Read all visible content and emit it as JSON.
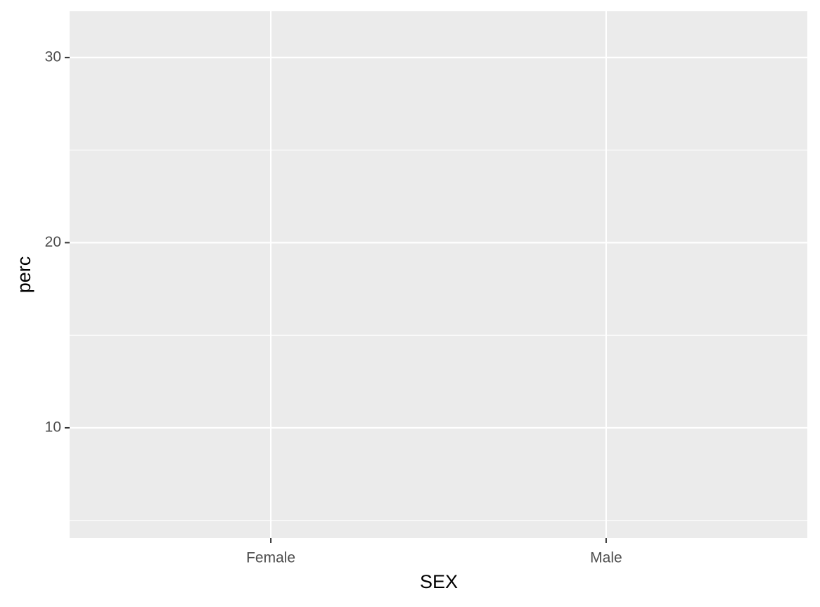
{
  "chart_data": {
    "type": "bar",
    "categories": [
      "Female",
      "Male"
    ],
    "x_label": "SEX",
    "y_label": "perc",
    "ylim": [
      4.04,
      32.5
    ],
    "yticks": [
      10,
      20,
      30
    ],
    "yminorticks": [
      5,
      15,
      25
    ],
    "grid": true,
    "panel_color": "#ebebeb",
    "grid_color": "#ffffff"
  }
}
